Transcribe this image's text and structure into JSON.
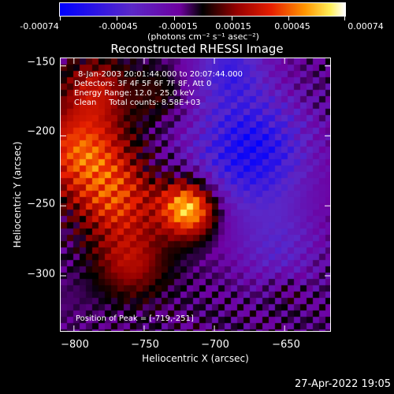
{
  "colorbar": {
    "tick_labels": [
      "-0.00074",
      "-0.00045",
      "-0.00015",
      "0.00015",
      "0.00045",
      "0.00074"
    ],
    "units": "(photons cm⁻² s⁻¹ asec⁻²)"
  },
  "annotations": {
    "time_range": "8-Jan-2003 20:01:44.000 to 20:07:44.000",
    "detectors": "Detectors: 3F 4F 5F 6F 7F 8F, Att 0",
    "energy": "Energy Range: 12.0 - 25.0 keV",
    "clean": "Clean     Total counts: 8.58E+03",
    "peak": "Position of Peak = [-719,-251]"
  },
  "timestamp": "27-Apr-2022 19:05",
  "chart_data": {
    "type": "heatmap",
    "title": "Reconstructed RHESSI Image",
    "xlabel": "Heliocentric X (arcsec)",
    "ylabel": "Heliocentric Y (arcsec)",
    "xlim": [
      -810,
      -617
    ],
    "ylim": [
      -340,
      -144
    ],
    "xticks": [
      -800,
      -750,
      -700,
      -650
    ],
    "yticks": [
      -150,
      -200,
      -250,
      -300
    ],
    "xtick_labels": [
      "−800",
      "−750",
      "−700",
      "−650"
    ],
    "ytick_labels": [
      "−150",
      "−200",
      "−250",
      "−300"
    ],
    "colormap": "blue-purple-red-yellow-white",
    "zlim": [
      -0.00074,
      0.00074
    ],
    "peak": {
      "x": -719,
      "y": -251
    },
    "regions": [
      {
        "x": -719,
        "y": -251,
        "radius": 14,
        "value": 0.00074
      },
      {
        "x": -795,
        "y": -210,
        "radius": 22,
        "value": 0.0005
      },
      {
        "x": -770,
        "y": -245,
        "radius": 20,
        "value": 0.0004
      },
      {
        "x": -760,
        "y": -290,
        "radius": 18,
        "value": 0.0003
      },
      {
        "x": -785,
        "y": -165,
        "radius": 16,
        "value": 0.0003
      },
      {
        "x": -740,
        "y": -170,
        "radius": 14,
        "value": 0.00015
      },
      {
        "x": -675,
        "y": -210,
        "radius": 30,
        "value": -0.00055
      },
      {
        "x": -690,
        "y": -150,
        "radius": 18,
        "value": -0.00035
      },
      {
        "x": -655,
        "y": -280,
        "radius": 22,
        "value": -0.00025
      },
      {
        "x": -650,
        "y": -310,
        "radius": 10,
        "value": 0.0001
      }
    ]
  }
}
